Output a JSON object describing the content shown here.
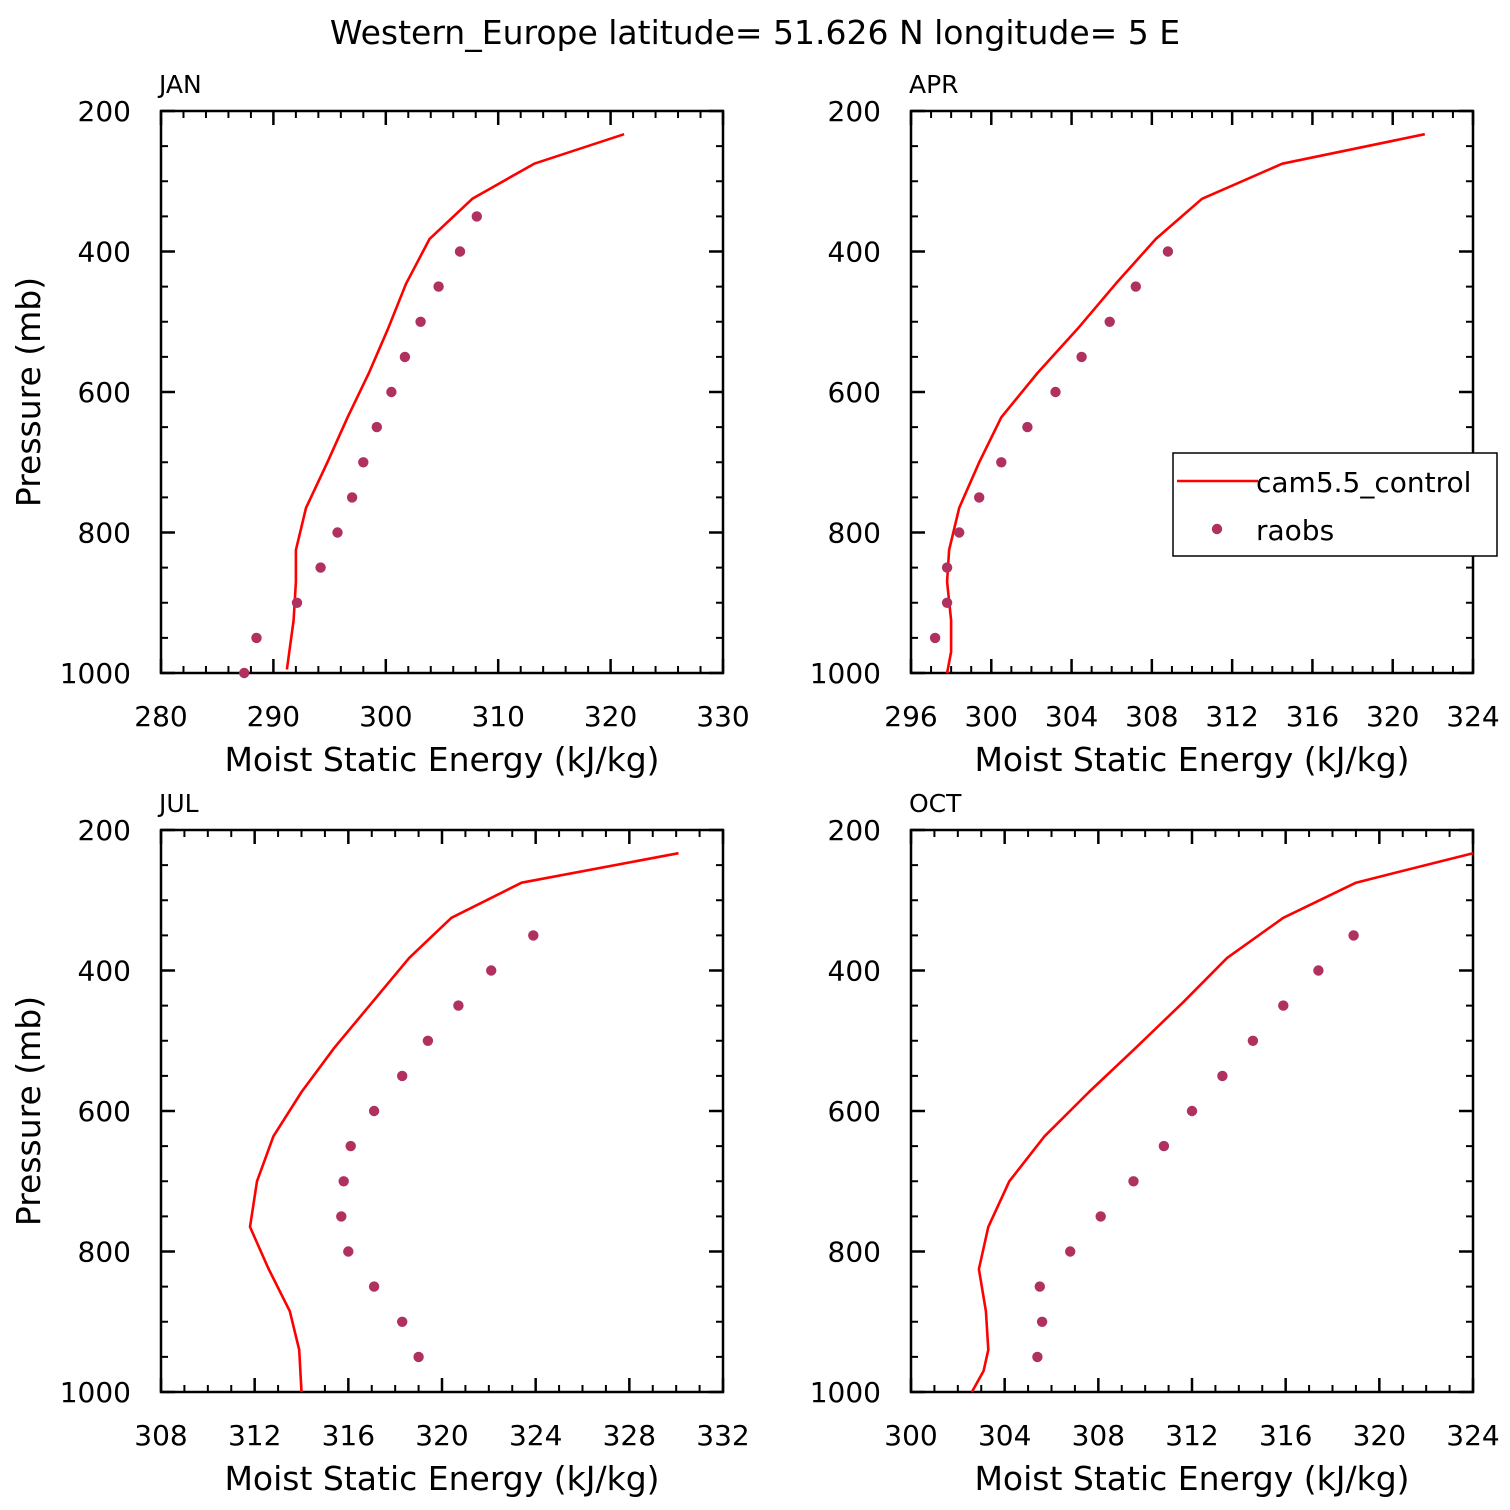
{
  "page_title": "Western_Europe  latitude= 51.626 N longitude= 5 E",
  "colors": {
    "model_line": "#ff0000",
    "obs_dot": "#b03060",
    "axis": "#000000"
  },
  "legend": {
    "placement": "right-middle of APR panel",
    "line_label": "cam5.5_control",
    "dot_label": "raobs"
  },
  "chart_data": [
    {
      "type": "line",
      "panel_title": "JAN",
      "xlabel": "Moist Static Energy (kJ/kg)",
      "ylabel": "Pressure (mb)",
      "xlim": [
        280,
        330
      ],
      "ylim": [
        1000,
        200
      ],
      "xticks": [
        280,
        290,
        300,
        310,
        320,
        330
      ],
      "yticks": [
        200,
        400,
        600,
        800,
        1000
      ],
      "series": [
        {
          "name": "cam5.5_control",
          "kind": "line",
          "x": [
            321.2,
            313.2,
            307.7,
            303.9,
            301.8,
            300.2,
            298.5,
            296.6,
            294.8,
            292.9,
            292.0,
            292.0,
            291.8,
            291.2
          ],
          "y": [
            233,
            275,
            325,
            382,
            446,
            510,
            573,
            636,
            700,
            765,
            825,
            870,
            925,
            995
          ]
        },
        {
          "name": "raobs",
          "kind": "scatter",
          "x": [
            308.1,
            306.6,
            304.7,
            303.1,
            301.7,
            300.5,
            299.2,
            298.0,
            297.0,
            295.7,
            294.2,
            292.1,
            288.5,
            287.4
          ],
          "y": [
            350,
            400,
            450,
            500,
            550,
            600,
            650,
            700,
            750,
            800,
            850,
            900,
            950,
            1000
          ]
        }
      ]
    },
    {
      "type": "line",
      "panel_title": "APR",
      "xlabel": "Moist Static Energy (kJ/kg)",
      "ylabel": "",
      "xlim": [
        296,
        324
      ],
      "ylim": [
        1000,
        200
      ],
      "xticks": [
        296,
        300,
        304,
        308,
        312,
        316,
        320,
        324
      ],
      "yticks": [
        200,
        400,
        600,
        800,
        1000
      ],
      "series": [
        {
          "name": "cam5.5_control",
          "kind": "line",
          "x": [
            321.6,
            314.5,
            310.5,
            308.2,
            306.2,
            304.3,
            302.3,
            300.5,
            299.4,
            298.4,
            297.9,
            297.8,
            298.0,
            298.0,
            297.8
          ],
          "y": [
            233,
            275,
            325,
            382,
            446,
            510,
            573,
            636,
            700,
            765,
            825,
            870,
            925,
            970,
            1000
          ]
        },
        {
          "name": "raobs",
          "kind": "scatter",
          "x": [
            308.8,
            307.2,
            305.9,
            304.5,
            303.2,
            301.8,
            300.5,
            299.4,
            298.4,
            297.8,
            297.8,
            297.2
          ],
          "y": [
            400,
            450,
            500,
            550,
            600,
            650,
            700,
            750,
            800,
            850,
            900,
            950
          ]
        }
      ]
    },
    {
      "type": "line",
      "panel_title": "JUL",
      "xlabel": "Moist Static Energy (kJ/kg)",
      "ylabel": "Pressure (mb)",
      "xlim": [
        308,
        332
      ],
      "ylim": [
        1000,
        200
      ],
      "xticks": [
        308,
        312,
        316,
        320,
        324,
        328,
        332
      ],
      "yticks": [
        200,
        400,
        600,
        800,
        1000
      ],
      "series": [
        {
          "name": "cam5.5_control",
          "kind": "line",
          "x": [
            330.1,
            323.4,
            320.4,
            318.6,
            317.0,
            315.4,
            314.0,
            312.8,
            312.1,
            311.8,
            312.6,
            313.5,
            313.9,
            314.0
          ],
          "y": [
            233,
            275,
            325,
            382,
            446,
            510,
            573,
            636,
            700,
            765,
            825,
            885,
            940,
            1000
          ]
        },
        {
          "name": "raobs",
          "kind": "scatter",
          "x": [
            323.9,
            322.1,
            320.7,
            319.4,
            318.3,
            317.1,
            316.1,
            315.8,
            315.7,
            316.0,
            317.1,
            318.3,
            319.0
          ],
          "y": [
            350,
            400,
            450,
            500,
            550,
            600,
            650,
            700,
            750,
            800,
            850,
            900,
            950
          ]
        }
      ]
    },
    {
      "type": "line",
      "panel_title": "OCT",
      "xlabel": "Moist Static Energy (kJ/kg)",
      "ylabel": "",
      "xlim": [
        300,
        324
      ],
      "ylim": [
        1000,
        200
      ],
      "xticks": [
        300,
        304,
        308,
        312,
        316,
        320,
        324
      ],
      "yticks": [
        200,
        400,
        600,
        800,
        1000
      ],
      "series": [
        {
          "name": "cam5.5_control",
          "kind": "line",
          "x": [
            324.0,
            319.0,
            315.9,
            313.5,
            311.6,
            309.6,
            307.6,
            305.7,
            304.2,
            303.3,
            302.9,
            303.2,
            303.3,
            303.1,
            302.6
          ],
          "y": [
            233,
            275,
            325,
            382,
            446,
            510,
            573,
            636,
            700,
            765,
            825,
            885,
            940,
            970,
            1000
          ]
        },
        {
          "name": "raobs",
          "kind": "scatter",
          "x": [
            318.9,
            317.4,
            315.9,
            314.6,
            313.3,
            312.0,
            310.8,
            309.5,
            308.1,
            306.8,
            305.5,
            305.6,
            305.4
          ],
          "y": [
            350,
            400,
            450,
            500,
            550,
            600,
            650,
            700,
            750,
            800,
            850,
            900,
            950
          ]
        }
      ]
    }
  ]
}
